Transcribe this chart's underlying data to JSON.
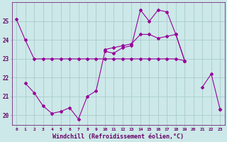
{
  "xlabel": "Windchill (Refroidissement éolien,°C)",
  "hours": [
    0,
    1,
    2,
    3,
    4,
    5,
    6,
    7,
    8,
    9,
    10,
    11,
    12,
    13,
    14,
    15,
    16,
    17,
    18,
    19,
    20,
    21,
    22,
    23
  ],
  "line1": [
    25.1,
    24.0,
    23.0,
    23.0,
    23.0,
    23.0,
    23.0,
    23.0,
    23.0,
    23.0,
    23.0,
    23.0,
    23.0,
    23.0,
    23.0,
    23.0,
    23.0,
    23.0,
    23.0,
    22.9,
    null,
    null,
    null,
    null
  ],
  "line2": [
    null,
    null,
    null,
    null,
    null,
    null,
    null,
    null,
    null,
    null,
    23.5,
    23.6,
    23.7,
    23.8,
    24.3,
    24.3,
    24.1,
    24.2,
    24.3,
    22.9,
    null,
    null,
    null,
    20.3
  ],
  "line3": [
    null,
    21.7,
    21.2,
    20.5,
    20.1,
    20.2,
    20.4,
    19.8,
    21.0,
    21.3,
    23.4,
    23.3,
    23.6,
    23.7,
    25.6,
    25.0,
    25.6,
    25.5,
    24.3,
    22.9,
    null,
    21.5,
    22.2,
    20.3
  ],
  "line_color": "#990099",
  "bg_color": "#cce8e8",
  "grid_color": "#aacccc",
  "axis_color": "#660066",
  "ylim": [
    19.5,
    26.0
  ],
  "yticks": [
    20,
    21,
    22,
    23,
    24,
    25
  ],
  "xlim": [
    -0.5,
    23.5
  ],
  "figsize": [
    3.2,
    2.0
  ],
  "dpi": 100
}
